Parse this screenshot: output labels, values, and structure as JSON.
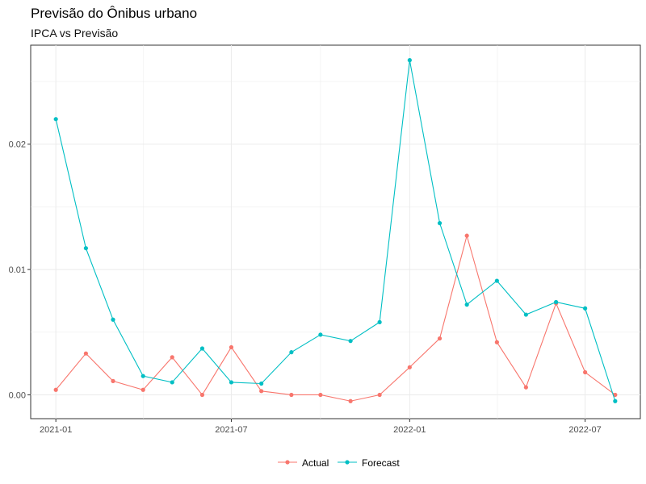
{
  "chart_data": {
    "type": "line",
    "title": "Previsão do Ônibus urbano",
    "subtitle": "IPCA vs Previsão",
    "xlabel": "",
    "ylabel": "",
    "x": [
      "2021-01-01",
      "2021-02-01",
      "2021-03-01",
      "2021-04-01",
      "2021-05-01",
      "2021-06-01",
      "2021-07-01",
      "2021-08-01",
      "2021-09-01",
      "2021-10-01",
      "2021-11-01",
      "2021-12-01",
      "2022-01-01",
      "2022-02-01",
      "2022-03-01",
      "2022-04-01",
      "2022-05-01",
      "2022-06-01",
      "2022-07-01",
      "2022-08-01"
    ],
    "x_ticks": [
      "2021-01",
      "2021-07",
      "2022-01",
      "2022-07"
    ],
    "y_ticks": [
      "0.00",
      "0.01",
      "0.02"
    ],
    "ylim": [
      -0.0019,
      0.0279
    ],
    "grid": true,
    "legend_position": "bottom",
    "series": [
      {
        "name": "Actual",
        "color": "#F8766D",
        "values": [
          0.0004,
          0.0033,
          0.0011,
          0.0004,
          0.003,
          0.0,
          0.0038,
          0.0003,
          0.0,
          0.0,
          -0.0005,
          0.0,
          0.0022,
          0.0045,
          0.0127,
          0.0042,
          0.0006,
          0.0073,
          0.0018,
          0.0
        ]
      },
      {
        "name": "Forecast",
        "color": "#00BFC4",
        "values": [
          0.022,
          0.0117,
          0.006,
          0.0015,
          0.001,
          0.0037,
          0.001,
          0.0009,
          0.0034,
          0.0048,
          0.0043,
          0.0058,
          0.0267,
          0.0137,
          0.0072,
          0.0091,
          0.0064,
          0.0074,
          0.0069,
          -0.0005
        ]
      }
    ]
  }
}
